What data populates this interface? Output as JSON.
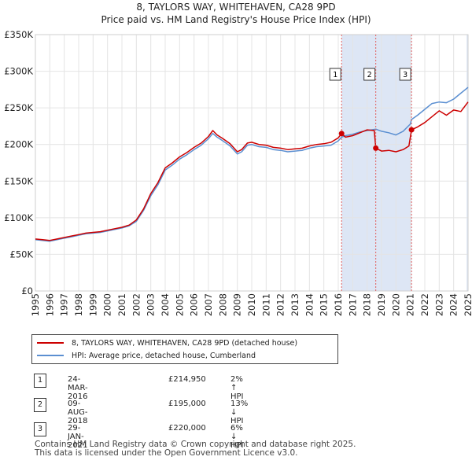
{
  "title_line1": "8, TAYLORS WAY, WHITEHAVEN, CA28 9PD",
  "title_line2": "Price paid vs. HM Land Registry's House Price Index (HPI)",
  "colors": {
    "property": "#cc0000",
    "hpi": "#5b8fd1",
    "shade": "#dde6f5",
    "marker_line": "#e06060"
  },
  "chart_data": {
    "type": "line",
    "ylim": [
      0,
      350000
    ],
    "xlim": [
      1995,
      2025
    ],
    "y_ticks": [
      {
        "value": 0,
        "label": "£0"
      },
      {
        "value": 50000,
        "label": "£50K"
      },
      {
        "value": 100000,
        "label": "£100K"
      },
      {
        "value": 150000,
        "label": "£150K"
      },
      {
        "value": 200000,
        "label": "£200K"
      },
      {
        "value": 250000,
        "label": "£250K"
      },
      {
        "value": 300000,
        "label": "£300K"
      },
      {
        "value": 350000,
        "label": "£350K"
      }
    ],
    "x_ticks": [
      "1995",
      "1996",
      "1997",
      "1998",
      "1999",
      "2000",
      "2001",
      "2002",
      "2003",
      "2004",
      "2005",
      "2006",
      "2007",
      "2008",
      "2009",
      "2010",
      "2011",
      "2012",
      "2013",
      "2014",
      "2015",
      "2016",
      "2017",
      "2018",
      "2019",
      "2020",
      "2021",
      "2022",
      "2023",
      "2024",
      "2025"
    ],
    "series": [
      {
        "name": "HPI: Average price, detached house, Cumberland",
        "x": [
          1995.0,
          1995.5,
          1996.0,
          1996.5,
          1997.0,
          1997.5,
          1998.0,
          1998.5,
          1999.0,
          1999.5,
          2000.0,
          2000.5,
          2001.0,
          2001.5,
          2002.0,
          2002.5,
          2003.0,
          2003.5,
          2004.0,
          2004.5,
          2005.0,
          2005.5,
          2006.0,
          2006.5,
          2007.0,
          2007.3,
          2007.6,
          2008.0,
          2008.5,
          2009.0,
          2009.3,
          2009.7,
          2010.0,
          2010.5,
          2011.0,
          2011.5,
          2012.0,
          2012.5,
          2013.0,
          2013.5,
          2014.0,
          2014.5,
          2015.0,
          2015.5,
          2016.0,
          2016.23,
          2016.5,
          2017.0,
          2017.5,
          2018.0,
          2018.6,
          2019.0,
          2019.5,
          2020.0,
          2020.5,
          2021.0,
          2021.08,
          2021.5,
          2022.0,
          2022.5,
          2023.0,
          2023.5,
          2024.0,
          2024.5,
          2025.0
        ],
        "values": [
          70000,
          69000,
          68000,
          70000,
          72000,
          74000,
          76000,
          78000,
          79000,
          80000,
          82000,
          84000,
          86000,
          89000,
          95000,
          110000,
          130000,
          145000,
          165000,
          172000,
          180000,
          186000,
          193000,
          199000,
          208000,
          215000,
          210000,
          205000,
          198000,
          187000,
          190000,
          199000,
          200000,
          197000,
          196000,
          193000,
          192000,
          190000,
          191000,
          192000,
          195000,
          197000,
          198000,
          199000,
          205000,
          210000,
          212000,
          214000,
          217000,
          219000,
          221000,
          218000,
          216000,
          213000,
          218000,
          228000,
          234000,
          240000,
          248000,
          256000,
          258000,
          257000,
          262000,
          270000,
          278000
        ]
      },
      {
        "name": "8, TAYLORS WAY, WHITEHAVEN, CA28 9PD (detached house)",
        "x": [
          1995.0,
          1995.5,
          1996.0,
          1996.5,
          1997.0,
          1997.5,
          1998.0,
          1998.5,
          1999.0,
          1999.5,
          2000.0,
          2000.5,
          2001.0,
          2001.5,
          2002.0,
          2002.5,
          2003.0,
          2003.5,
          2004.0,
          2004.5,
          2005.0,
          2005.5,
          2006.0,
          2006.5,
          2007.0,
          2007.3,
          2007.6,
          2008.0,
          2008.5,
          2009.0,
          2009.3,
          2009.7,
          2010.0,
          2010.5,
          2011.0,
          2011.5,
          2012.0,
          2012.5,
          2013.0,
          2013.5,
          2014.0,
          2014.5,
          2015.0,
          2015.5,
          2016.0,
          2016.23,
          2016.5,
          2017.0,
          2017.5,
          2018.0,
          2018.5,
          2018.6,
          2018.8,
          2019.0,
          2019.5,
          2020.0,
          2020.5,
          2020.9,
          2021.08,
          2021.5,
          2022.0,
          2022.5,
          2023.0,
          2023.5,
          2024.0,
          2024.5,
          2025.0
        ],
        "values": [
          71000,
          70000,
          69000,
          71000,
          73000,
          75000,
          77000,
          79000,
          80000,
          81000,
          83000,
          85000,
          87000,
          90000,
          97000,
          112000,
          133000,
          148000,
          168000,
          175000,
          183000,
          189000,
          196000,
          202000,
          211000,
          219000,
          213000,
          208000,
          201000,
          190000,
          193000,
          202000,
          203000,
          200000,
          199000,
          196000,
          195000,
          193000,
          194000,
          195000,
          198000,
          200000,
          201000,
          203000,
          209000,
          214950,
          210000,
          212000,
          216000,
          220000,
          219000,
          195000,
          193000,
          191000,
          192000,
          190000,
          193000,
          198000,
          220000,
          224000,
          230000,
          238000,
          246000,
          240000,
          247000,
          245000,
          258000
        ]
      }
    ],
    "annotations": [
      {
        "label": "1",
        "x": 2016.23,
        "value": 214950
      },
      {
        "label": "2",
        "x": 2018.6,
        "value": 195000
      },
      {
        "label": "3",
        "x": 2021.08,
        "value": 220000
      }
    ]
  },
  "legend": {
    "property_label": "8, TAYLORS WAY, WHITEHAVEN, CA28 9PD (detached house)",
    "hpi_label": "HPI: Average price, detached house, Cumberland"
  },
  "transactions": [
    {
      "num": "1",
      "date": "24-MAR-2016",
      "price": "£214,950",
      "hpi": "2% ↑ HPI"
    },
    {
      "num": "2",
      "date": "09-AUG-2018",
      "price": "£195,000",
      "hpi": "13% ↓ HPI"
    },
    {
      "num": "3",
      "date": "29-JAN-2021",
      "price": "£220,000",
      "hpi": "6% ↓ HPI"
    }
  ],
  "footer": {
    "line1": "Contains HM Land Registry data © Crown copyright and database right 2025.",
    "line2": "This data is licensed under the Open Government Licence v3.0."
  }
}
